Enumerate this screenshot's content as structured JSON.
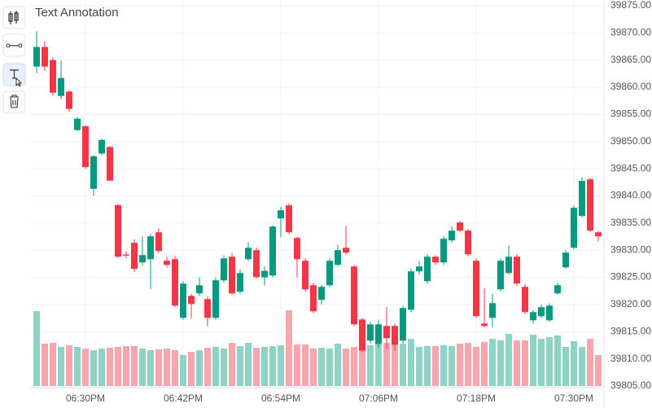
{
  "chart_data": {
    "type": "candlestick",
    "title": "Text Annotation",
    "categories": [
      null,
      null,
      null,
      null,
      null,
      null,
      "06:30PM",
      null,
      null,
      null,
      null,
      null,
      null,
      null,
      null,
      null,
      null,
      null,
      "06:42PM",
      null,
      null,
      null,
      null,
      null,
      null,
      null,
      null,
      null,
      null,
      null,
      "06:54PM",
      null,
      null,
      null,
      null,
      null,
      null,
      null,
      null,
      null,
      null,
      null,
      "07:06PM",
      null,
      null,
      null,
      null,
      null,
      null,
      null,
      null,
      null,
      null,
      null,
      "07:18PM",
      null,
      null,
      null,
      null,
      null,
      null,
      null,
      null,
      null,
      null,
      null,
      "07:30PM",
      null,
      null,
      null
    ],
    "open": [
      39863.8,
      39867.4,
      39865,
      39858.4,
      39859.2,
      39852.1,
      39852.8,
      39841.3,
      39847.8,
      39849,
      39838.3,
      39829.2,
      39831.35,
      39827.75,
      39828.35,
      39833.3,
      39828.05,
      39828.35,
      39817.55,
      39821.6,
      39822.05,
      39821,
      39817.55,
      39824.45,
      39828.8,
      39822.35,
      39828.35,
      39830,
      39825,
      39825.35,
      39835.85,
      39838.25,
      39832.25,
      39828.05,
      39823.55,
      39820.85,
      39823.55,
      39827.3,
      39830.45,
      39827,
      39817.25,
      39813.35,
      39812.75,
      39816.05,
      39816.05,
      39813.35,
      39819.05,
      39826.1,
      39824.3,
      39828.8,
      39827.75,
      39831.8,
      39835.1,
      39833.6,
      39828.05,
      39816.5,
      39817.55,
      39822.8,
      39825.8,
      39828.8,
      39823.25,
      39817.1,
      39817.85,
      39817.1,
      39822.05,
      39826.85,
      39830.45,
      39836.3,
      39843.05,
      39833.3
    ],
    "high": [
      39870.3,
      39868.5,
      39865.5,
      39864.9,
      39859.5,
      39854.5,
      39853,
      39847.5,
      39850.5,
      39849.2,
      39838.5,
      39829.8,
      39832,
      39832.55,
      39833,
      39834,
      39828.8,
      39829,
      39824.3,
      39822,
      39825,
      39821.5,
      39825,
      39829,
      39829.5,
      39826.5,
      39831.5,
      39830.5,
      39827,
      39834.6,
      39838,
      39838.6,
      39832.5,
      39828.5,
      39824,
      39823.6,
      39828.5,
      39831,
      39834.5,
      39827.3,
      39817.6,
      39816.8,
      39817.2,
      39819.5,
      39816.5,
      39819.8,
      39826.6,
      39828,
      39829.3,
      39829.1,
      39832.6,
      39834.4,
      39835.4,
      39833.9,
      39828.5,
      39823,
      39822,
      39828.5,
      39830.8,
      39829.3,
      39823.8,
      39819,
      39820,
      39820.2,
      39824,
      39830,
      39838.3,
      39843.4,
      39843.3,
      39833.5
    ],
    "low": [
      39862.6,
      39863,
      39858.5,
      39857.8,
      39855.5,
      39852,
      39845,
      39840,
      39847.5,
      39842.8,
      39828.6,
      39828.5,
      39826,
      39827.2,
      39822.8,
      39829.5,
      39826.8,
      39819.5,
      39817.2,
      39817.5,
      39821.5,
      39816,
      39817.2,
      39824,
      39821.8,
      39822,
      39828,
      39824.8,
      39823.5,
      39825,
      39832.4,
      39833,
      39825,
      39822.4,
      39818.4,
      39820,
      39823.2,
      39827,
      39829.2,
      39816,
      39811.2,
      39812.8,
      39812,
      39811.8,
      39811.5,
      39812.8,
      39818.6,
      39825.5,
      39823.8,
      39827.3,
      39827.3,
      39831.4,
      39833.3,
      39828.9,
      39817.5,
      39815.8,
      39815.8,
      39822.4,
      39825.5,
      39823.4,
      39818.2,
      39816.5,
      39817.5,
      39816.8,
      39821.8,
      39826.6,
      39830.1,
      39836,
      39833.3,
      39831.6
    ],
    "close": [
      39867.4,
      39863.8,
      39859,
      39861.7,
      39856,
      39854.2,
      39845.3,
      39847.3,
      39850.3,
      39842.8,
      39828.8,
      39829,
      39826.55,
      39829.1,
      39832.55,
      39829.85,
      39827.3,
      39819.8,
      39823.85,
      39820.1,
      39823.55,
      39817.55,
      39824.45,
      39828.5,
      39822.05,
      39825.8,
      39830.45,
      39825.05,
      39826.2,
      39834.35,
      39837.35,
      39833.3,
      39828.35,
      39822.8,
      39818.75,
      39823.25,
      39828.05,
      39830,
      39829.55,
      39816.35,
      39811.55,
      39816.35,
      39816.35,
      39813.8,
      39812.6,
      39819.35,
      39826.1,
      39827,
      39828.8,
      39827.75,
      39832.1,
      39833.6,
      39833.6,
      39829.25,
      39817.85,
      39816.05,
      39820.25,
      39828.05,
      39828.8,
      39823.85,
      39818.6,
      39818.6,
      39819.5,
      39819.8,
      39823.55,
      39829.55,
      39837.8,
      39842.75,
      39833.6,
      39832.55
    ],
    "volume": [
      92,
      52,
      53,
      48,
      50,
      48,
      46,
      44,
      46,
      47,
      48,
      49,
      49,
      46,
      44,
      45,
      46,
      44,
      38,
      42,
      44,
      47,
      48,
      46,
      53,
      49,
      53,
      47,
      48,
      49,
      50,
      93,
      51,
      51,
      46,
      47,
      46,
      52,
      46,
      48,
      46,
      50,
      55,
      53,
      56,
      52,
      58,
      48,
      49,
      49,
      50,
      49,
      52,
      53,
      48,
      54,
      58,
      56,
      64,
      56,
      56,
      63,
      58,
      60,
      62,
      48,
      55,
      48,
      58,
      38
    ],
    "up_color": "#089981",
    "down_color": "#f23645",
    "up_volume_color": "#8fd3c6",
    "down_volume_color": "#f7a6ad",
    "ylim": [
      39805,
      39875
    ],
    "yticks": [
      {
        "value": 39805,
        "label": "39805.00"
      },
      {
        "value": 39810,
        "label": "39810.00"
      },
      {
        "value": 39815,
        "label": "39815.00"
      },
      {
        "value": 39820,
        "label": "39820.00"
      },
      {
        "value": 39825,
        "label": "39825.00"
      },
      {
        "value": 39830,
        "label": "39830.00"
      },
      {
        "value": 39835,
        "label": "39835.00"
      },
      {
        "value": 39840,
        "label": "39840.00"
      },
      {
        "value": 39845,
        "label": "39845.00"
      },
      {
        "value": 39850,
        "label": "39850.00"
      },
      {
        "value": 39855,
        "label": "39855.00"
      },
      {
        "value": 39860,
        "label": "39860.00"
      },
      {
        "value": 39865,
        "label": "39865.00"
      },
      {
        "value": 39870,
        "label": "39870.00"
      },
      {
        "value": 39875,
        "label": "39875.00"
      }
    ],
    "grid": true
  }
}
